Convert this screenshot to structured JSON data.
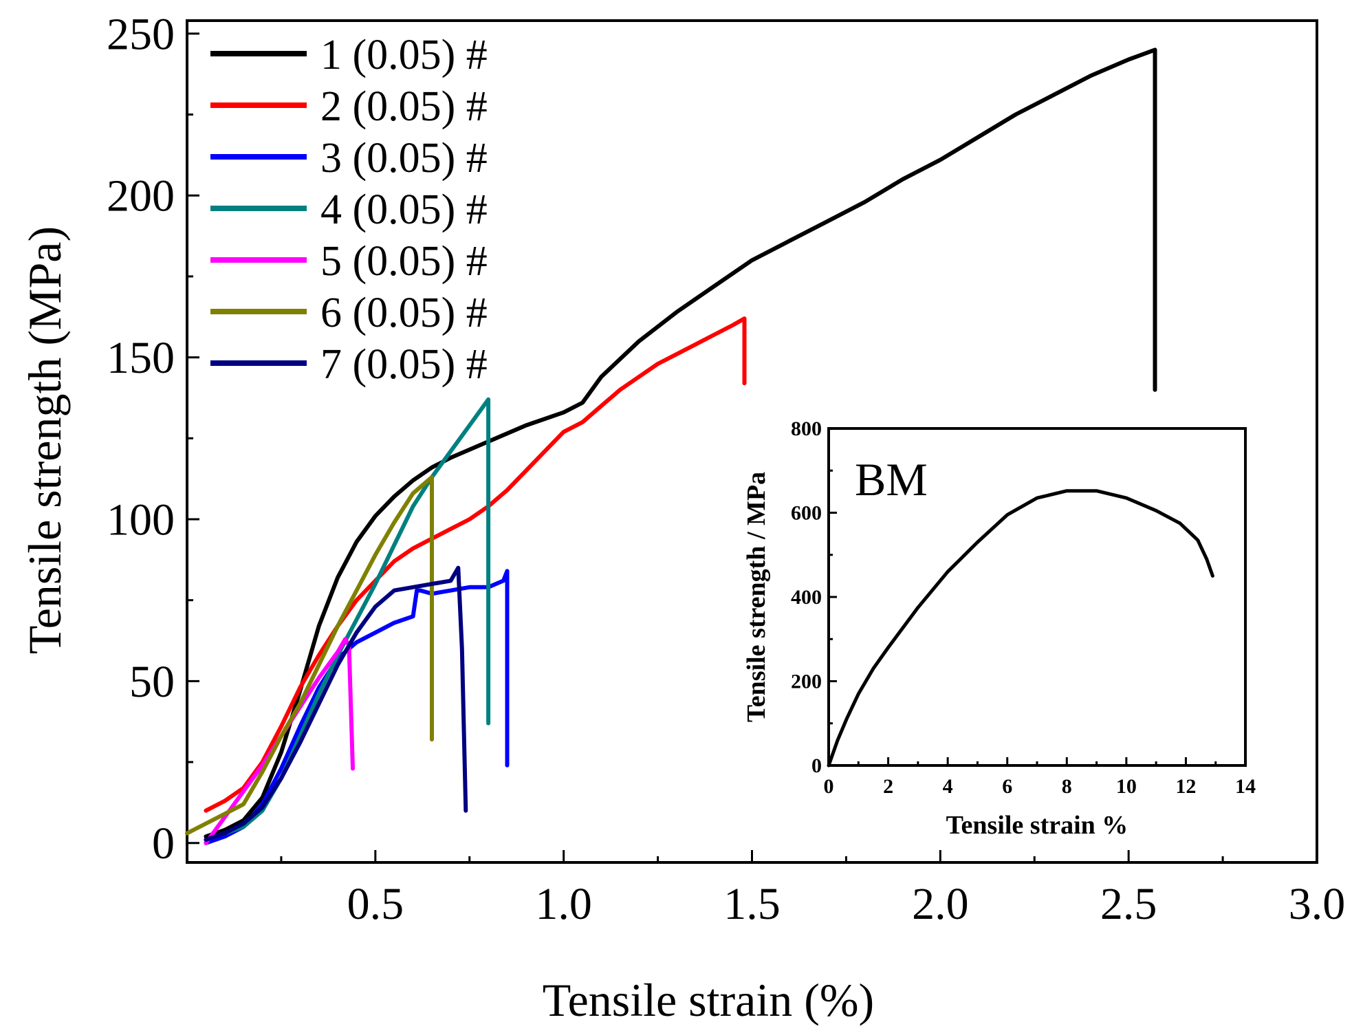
{
  "chart_data": [
    {
      "type": "line",
      "xlabel": "Tensile strain (%)",
      "ylabel": "Tensile strength (MPa)",
      "xlim": [
        0.0,
        3.0
      ],
      "ylim": [
        -6,
        254
      ],
      "xticks": [
        0.5,
        1.0,
        1.5,
        2.0,
        2.5,
        3.0
      ],
      "xtick_labels": [
        "0.5",
        "1.0",
        "1.5",
        "2.0",
        "2.5",
        "3.0"
      ],
      "yticks": [
        0,
        50,
        100,
        150,
        200,
        250
      ],
      "ytick_labels": [
        "0",
        "50",
        "100",
        "150",
        "200",
        "250"
      ],
      "grid": false,
      "legend_position": "top-left",
      "series": [
        {
          "name": "1 (0.05) #",
          "color": "#000000",
          "x": [
            0.05,
            0.1,
            0.15,
            0.2,
            0.25,
            0.3,
            0.35,
            0.4,
            0.45,
            0.5,
            0.55,
            0.6,
            0.65,
            0.7,
            0.8,
            0.9,
            1.0,
            1.05,
            1.1,
            1.2,
            1.3,
            1.4,
            1.5,
            1.6,
            1.7,
            1.8,
            1.9,
            2.0,
            2.1,
            2.2,
            2.3,
            2.4,
            2.5,
            2.57,
            2.57
          ],
          "y": [
            2,
            4,
            7,
            14,
            28,
            47,
            67,
            82,
            93,
            101,
            107,
            112,
            116,
            119,
            124,
            129,
            133,
            136,
            144,
            155,
            164,
            172,
            180,
            186,
            192,
            198,
            205,
            211,
            218,
            225,
            231,
            237,
            242,
            245,
            140
          ]
        },
        {
          "name": "2 (0.05) #",
          "color": "#ff0000",
          "x": [
            0.05,
            0.1,
            0.15,
            0.2,
            0.25,
            0.3,
            0.35,
            0.4,
            0.45,
            0.5,
            0.55,
            0.6,
            0.65,
            0.7,
            0.75,
            0.8,
            0.85,
            0.9,
            0.95,
            1.0,
            1.05,
            1.1,
            1.15,
            1.2,
            1.25,
            1.3,
            1.35,
            1.4,
            1.45,
            1.48,
            1.48
          ],
          "y": [
            10,
            13,
            17,
            25,
            36,
            48,
            58,
            67,
            75,
            81,
            87,
            91,
            94,
            97,
            100,
            104,
            109,
            115,
            121,
            127,
            130,
            135,
            140,
            144,
            148,
            151,
            154,
            157,
            160,
            162,
            142
          ]
        },
        {
          "name": "3 (0.05) #",
          "color": "#0000ff",
          "x": [
            0.05,
            0.1,
            0.15,
            0.2,
            0.25,
            0.3,
            0.35,
            0.4,
            0.45,
            0.5,
            0.55,
            0.6,
            0.61,
            0.62,
            0.65,
            0.7,
            0.75,
            0.8,
            0.84,
            0.85,
            0.85
          ],
          "y": [
            0,
            2,
            5,
            12,
            23,
            36,
            48,
            57,
            62,
            65,
            68,
            70,
            78,
            78,
            77,
            78,
            79,
            79,
            81,
            84,
            24
          ]
        },
        {
          "name": "4 (0.05) #",
          "color": "#008080",
          "x": [
            0.05,
            0.1,
            0.15,
            0.2,
            0.25,
            0.3,
            0.35,
            0.4,
            0.45,
            0.5,
            0.55,
            0.6,
            0.65,
            0.7,
            0.75,
            0.8,
            0.8
          ],
          "y": [
            1,
            3,
            5,
            10,
            20,
            33,
            46,
            58,
            69,
            80,
            92,
            104,
            113,
            121,
            129,
            137,
            37
          ]
        },
        {
          "name": "5 (0.05) #",
          "color": "#ff00ff",
          "x": [
            0.05,
            0.1,
            0.15,
            0.2,
            0.25,
            0.3,
            0.35,
            0.4,
            0.42,
            0.43,
            0.44
          ],
          "y": [
            0,
            8,
            16,
            24,
            33,
            42,
            51,
            59,
            63,
            61,
            23
          ]
        },
        {
          "name": "6 (0.05) #",
          "color": "#808000",
          "x": [
            0.0,
            0.05,
            0.1,
            0.15,
            0.2,
            0.25,
            0.3,
            0.35,
            0.4,
            0.45,
            0.5,
            0.55,
            0.6,
            0.65,
            0.65
          ],
          "y": [
            3,
            6,
            9,
            12,
            22,
            33,
            43,
            55,
            67,
            78,
            89,
            99,
            108,
            113,
            32
          ]
        },
        {
          "name": "7 (0.05) #",
          "color": "#000080",
          "x": [
            0.05,
            0.1,
            0.15,
            0.2,
            0.25,
            0.3,
            0.35,
            0.4,
            0.45,
            0.5,
            0.55,
            0.6,
            0.65,
            0.7,
            0.72,
            0.73,
            0.74
          ],
          "y": [
            1,
            3,
            6,
            11,
            20,
            31,
            43,
            55,
            65,
            73,
            78,
            79,
            80,
            81,
            85,
            60,
            10
          ]
        }
      ]
    },
    {
      "type": "line",
      "title": "BM",
      "xlabel": "Tensile strain %",
      "ylabel": "Tensile strength / MPa",
      "xlim": [
        0,
        14
      ],
      "ylim": [
        0,
        800
      ],
      "xticks": [
        0,
        2,
        4,
        6,
        8,
        10,
        12,
        14
      ],
      "xtick_labels": [
        "0",
        "2",
        "4",
        "6",
        "8",
        "10",
        "12",
        "14"
      ],
      "yticks": [
        0,
        200,
        400,
        600,
        800
      ],
      "ytick_labels": [
        "0",
        "200",
        "400",
        "600",
        "800"
      ],
      "grid": false,
      "legend_position": "none",
      "series": [
        {
          "name": "BM",
          "color": "#000000",
          "x": [
            0.0,
            0.3,
            0.6,
            1.0,
            1.5,
            2.0,
            3.0,
            4.0,
            5.0,
            6.0,
            7.0,
            8.0,
            9.0,
            10.0,
            11.0,
            11.8,
            12.4,
            12.7,
            12.9
          ],
          "y": [
            0,
            60,
            110,
            170,
            230,
            280,
            375,
            460,
            530,
            595,
            635,
            652,
            652,
            635,
            605,
            575,
            535,
            490,
            450
          ]
        }
      ]
    }
  ]
}
